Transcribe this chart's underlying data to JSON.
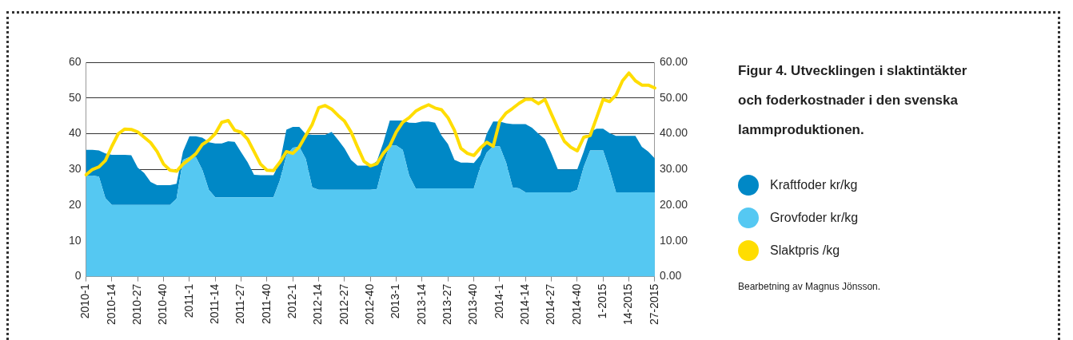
{
  "chart_data": {
    "type": "area",
    "title": "Figur 4. Utvecklingen i slaktintäkter och foderkostnader i den svenska lammproduktionen.",
    "categories": [
      "2010-1",
      null,
      null,
      null,
      "2010-14",
      null,
      null,
      null,
      "2010-27",
      null,
      null,
      null,
      "2010-40",
      null,
      null,
      null,
      "2011-1",
      null,
      null,
      null,
      "2011-14",
      null,
      null,
      null,
      "2011-27",
      null,
      null,
      null,
      "2011-40",
      null,
      null,
      null,
      "2012-1",
      null,
      null,
      null,
      "2012-14",
      null,
      null,
      null,
      "2012-27",
      null,
      null,
      null,
      "2012-40",
      null,
      null,
      null,
      "2013-1",
      null,
      null,
      null,
      "2013-14",
      null,
      null,
      null,
      "2013-27",
      null,
      null,
      null,
      "2013-40",
      null,
      null,
      null,
      "2014-1",
      null,
      null,
      null,
      "2014-14",
      null,
      null,
      null,
      "2014-27",
      null,
      null,
      null,
      "2014-40",
      null,
      null,
      null,
      "1-2015",
      null,
      null,
      null,
      "14-2015",
      null,
      null,
      null,
      "27-2015"
    ],
    "series": [
      {
        "name": "Grovfoder kr/kg",
        "color": "#55c8f2",
        "values": [
          28.3,
          28.3,
          28,
          22,
          20.1,
          20.1,
          20.1,
          20.1,
          20.1,
          20.1,
          20.1,
          20.1,
          20.1,
          20.1,
          21.8,
          32.7,
          33.5,
          33.5,
          29.9,
          24.3,
          22.2,
          22.2,
          22.2,
          22.2,
          22.2,
          22.2,
          22.2,
          22.2,
          22.2,
          22.2,
          27,
          33.9,
          36.1,
          36.3,
          33,
          25,
          24.3,
          24.3,
          24.3,
          24.3,
          24.3,
          24.3,
          24.3,
          24.3,
          24.3,
          24.5,
          31.5,
          36.7,
          36.7,
          35.5,
          28.3,
          24.7,
          24.7,
          24.7,
          24.7,
          24.7,
          24.7,
          24.7,
          24.7,
          24.7,
          24.7,
          30.7,
          34.7,
          36.5,
          36.5,
          31.9,
          25,
          24.7,
          23.6,
          23.6,
          23.6,
          23.6,
          23.6,
          23.6,
          23.6,
          23.6,
          24.3,
          30.7,
          35.3,
          35.3,
          35.3,
          29.9,
          23.6,
          23.6,
          23.6,
          23.6,
          23.6,
          23.6,
          23.6
        ]
      },
      {
        "name": "Kraftfoder kr/kg",
        "color": "#0088c6",
        "values": [
          7.2,
          7.2,
          7.3,
          12.5,
          14,
          14,
          14,
          13.9,
          10.4,
          8.9,
          6.4,
          5.5,
          5.5,
          5.5,
          4.2,
          2.3,
          5.8,
          5.8,
          9,
          13.3,
          15.1,
          15.1,
          15.7,
          15.5,
          12.6,
          9.8,
          6.3,
          6.2,
          6.2,
          6.2,
          5,
          7.2,
          5.8,
          5.6,
          6.9,
          14.7,
          15.4,
          15.4,
          16.2,
          14,
          11.6,
          8.4,
          6.8,
          6.8,
          6.8,
          7.8,
          6,
          7,
          7,
          8.2,
          14.8,
          18.3,
          18.7,
          18.7,
          18.4,
          14.8,
          12.4,
          8,
          7.2,
          7.2,
          7.1,
          3.3,
          5.3,
          6.9,
          6.9,
          11,
          17.7,
          18,
          19.1,
          18.1,
          16.4,
          14.9,
          10.9,
          6.4,
          6.4,
          6.4,
          5.7,
          4.3,
          5.2,
          6.1,
          6.1,
          10.3,
          15.8,
          15.8,
          15.8,
          15.8,
          12.7,
          11.4,
          9.5
        ]
      },
      {
        "name": "Slaktpris /kg",
        "type": "line",
        "axis": "y2",
        "color": "#ffdd00",
        "values": [
          28.5,
          30,
          30.7,
          32.5,
          36.5,
          40,
          41.3,
          41.2,
          40.5,
          39,
          37.5,
          35,
          31.5,
          29.8,
          29.5,
          31.5,
          32.9,
          34.4,
          37,
          38.2,
          40,
          43.2,
          43.7,
          41,
          40.4,
          38.5,
          35,
          31.5,
          29.8,
          29.7,
          32,
          35,
          34.5,
          36.3,
          39.5,
          42.6,
          47.3,
          47.9,
          46.9,
          45.1,
          43.5,
          40.5,
          36.3,
          32.3,
          31,
          31.6,
          34.5,
          36.6,
          40.5,
          43.2,
          44.5,
          46.3,
          47.3,
          48.1,
          47.2,
          46.7,
          44.5,
          41,
          35.9,
          34.5,
          33.9,
          36,
          37.6,
          36.5,
          43.5,
          45.8,
          47.1,
          48.5,
          49.6,
          49.6,
          48.4,
          49.6,
          45.5,
          41.5,
          37.9,
          36.2,
          35.2,
          39,
          39.5,
          44.5,
          49.6,
          49,
          50.8,
          54.8,
          57,
          54.8,
          53.6,
          53.6,
          52.8
        ]
      }
    ],
    "stacked": true,
    "ylim": [
      0,
      60
    ],
    "yticks": [
      0,
      10,
      20,
      30,
      40,
      50,
      60
    ],
    "y2lim": [
      0,
      60
    ],
    "y2ticks": [
      {
        "value": 0,
        "label": "0.00"
      },
      {
        "value": 10,
        "label": "10.00"
      },
      {
        "value": 20,
        "label": "20.00"
      },
      {
        "value": 30,
        "label": "30.00"
      },
      {
        "value": 40,
        "label": "40.00"
      },
      {
        "value": 50,
        "label": "50.00"
      },
      {
        "value": 60,
        "label": "60.00"
      }
    ],
    "grid": "y",
    "legend": "right",
    "annotations": [
      "Bearbetning av Magnus Jönsson."
    ]
  }
}
